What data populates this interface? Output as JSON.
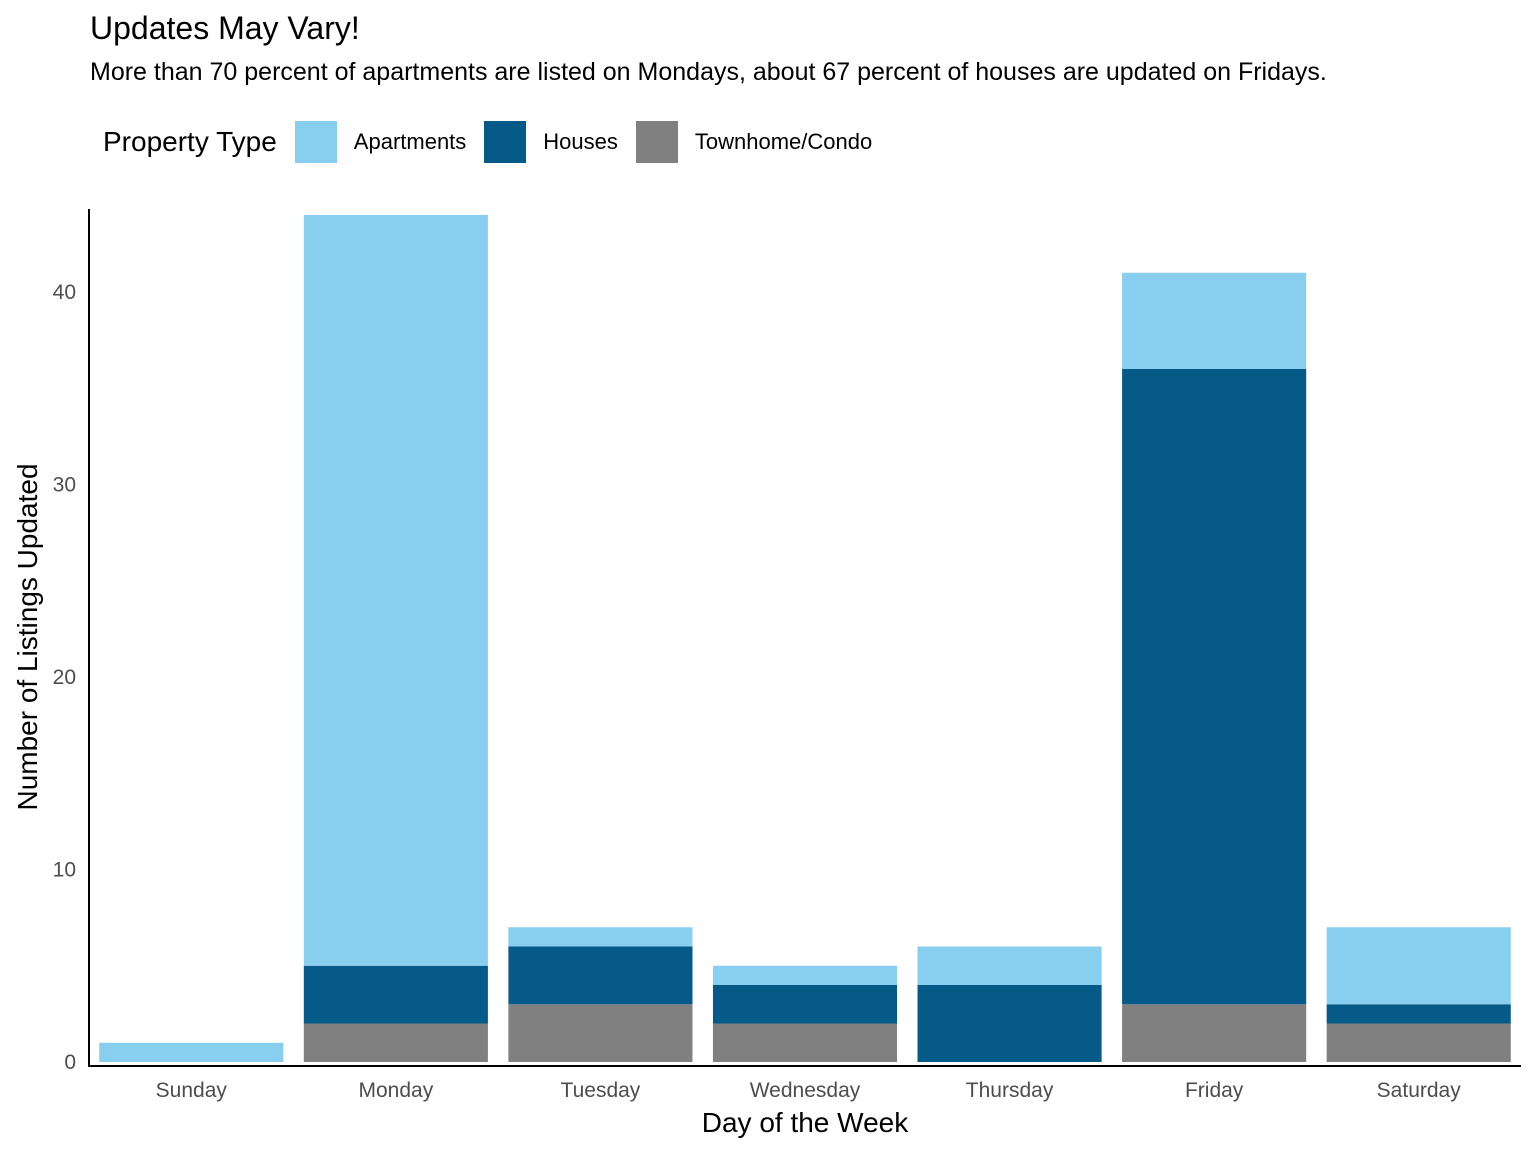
{
  "chart_data": {
    "type": "bar",
    "stacked": true,
    "title": "Updates May Vary!",
    "subtitle": "More than 70 percent of apartments are listed on Mondays, about 67 percent of houses are updated on Fridays.",
    "xlabel": "Day of the Week",
    "ylabel": "Number of Listings Updated",
    "categories": [
      "Sunday",
      "Monday",
      "Tuesday",
      "Wednesday",
      "Thursday",
      "Friday",
      "Saturday"
    ],
    "ylim": [
      0,
      44
    ],
    "yticks": [
      0,
      10,
      20,
      30,
      40
    ],
    "grid": false,
    "legend": {
      "title": "Property Type",
      "position": "top-left",
      "entries": [
        "Apartments",
        "Houses",
        "Townhome/Condo"
      ]
    },
    "series": [
      {
        "name": "Townhome/Condo",
        "color": "#808080",
        "values": [
          0,
          2,
          3,
          2,
          0,
          3,
          2
        ]
      },
      {
        "name": "Houses",
        "color": "#065a87",
        "values": [
          0,
          3,
          3,
          2,
          4,
          33,
          1
        ]
      },
      {
        "name": "Apartments",
        "color": "#88cfef",
        "values": [
          1,
          39,
          1,
          1,
          2,
          5,
          4
        ]
      }
    ]
  }
}
